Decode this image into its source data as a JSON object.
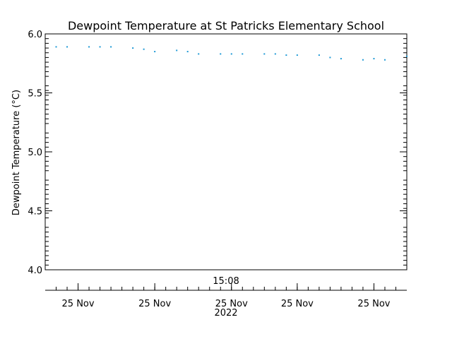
{
  "chart_data": {
    "type": "scatter",
    "title": "Dewpoint Temperature at St Patricks Elementary School",
    "ylabel": "Dewpoint Temperature (°C)",
    "ylim": [
      4.0,
      6.0
    ],
    "yticks": [
      "4.0",
      "4.5",
      "5.0",
      "5.5",
      "6.0"
    ],
    "xlim": [
      "14:51",
      "15:24"
    ],
    "x_time_label": "15:08",
    "x_date_ticks": [
      "25 Nov",
      "25 Nov",
      "25 Nov",
      "25 Nov",
      "25 Nov"
    ],
    "x_date_tick_times": [
      "14:54",
      "15:01",
      "15:08",
      "15:14",
      "15:21"
    ],
    "x_year_label": "2022",
    "series_color": "#1f9ad6",
    "grid": false,
    "points": [
      {
        "x": "14:52",
        "y": 5.89
      },
      {
        "x": "14:53",
        "y": 5.89
      },
      {
        "x": "14:55",
        "y": 5.89
      },
      {
        "x": "14:56",
        "y": 5.89
      },
      {
        "x": "14:57",
        "y": 5.89
      },
      {
        "x": "14:59",
        "y": 5.88
      },
      {
        "x": "15:00",
        "y": 5.87
      },
      {
        "x": "15:01",
        "y": 5.85
      },
      {
        "x": "15:03",
        "y": 5.86
      },
      {
        "x": "15:04",
        "y": 5.85
      },
      {
        "x": "15:05",
        "y": 5.83
      },
      {
        "x": "15:07",
        "y": 5.83
      },
      {
        "x": "15:08",
        "y": 5.83
      },
      {
        "x": "15:09",
        "y": 5.83
      },
      {
        "x": "15:11",
        "y": 5.83
      },
      {
        "x": "15:12",
        "y": 5.83
      },
      {
        "x": "15:13",
        "y": 5.82
      },
      {
        "x": "15:14",
        "y": 5.82
      },
      {
        "x": "15:16",
        "y": 5.82
      },
      {
        "x": "15:17",
        "y": 5.8
      },
      {
        "x": "15:18",
        "y": 5.79
      },
      {
        "x": "15:20",
        "y": 5.78
      },
      {
        "x": "15:21",
        "y": 5.79
      },
      {
        "x": "15:22",
        "y": 5.78
      },
      {
        "x": "15:24",
        "y": 5.81
      }
    ]
  }
}
